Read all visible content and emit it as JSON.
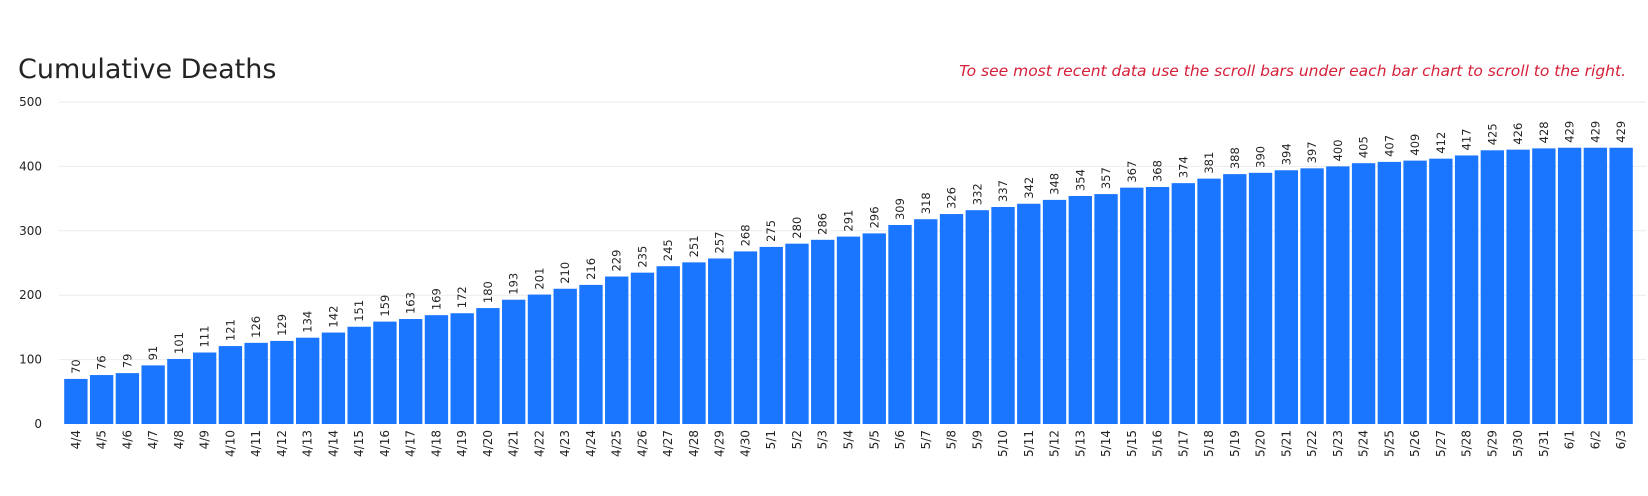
{
  "header": {
    "title": "Cumulative Deaths",
    "note": "To see most recent data use the scroll bars under each bar chart to scroll to the right."
  },
  "colors": {
    "bar": "#1a75ff",
    "grid": "#ebebeb",
    "text": "#252423",
    "note": "#d6203a"
  },
  "chart_data": {
    "type": "bar",
    "title": "Cumulative Deaths",
    "xlabel": "",
    "ylabel": "",
    "ylim": [
      0,
      500
    ],
    "yticks": [
      0,
      100,
      200,
      300,
      400,
      500
    ],
    "grid": true,
    "categories": [
      "4/4",
      "4/5",
      "4/6",
      "4/7",
      "4/8",
      "4/9",
      "4/10",
      "4/11",
      "4/12",
      "4/13",
      "4/14",
      "4/15",
      "4/16",
      "4/17",
      "4/18",
      "4/19",
      "4/20",
      "4/21",
      "4/22",
      "4/23",
      "4/24",
      "4/25",
      "4/26",
      "4/27",
      "4/28",
      "4/29",
      "4/30",
      "5/1",
      "5/2",
      "5/3",
      "5/4",
      "5/5",
      "5/6",
      "5/7",
      "5/8",
      "5/9",
      "5/10",
      "5/11",
      "5/12",
      "5/13",
      "5/14",
      "5/15",
      "5/16",
      "5/17",
      "5/18",
      "5/19",
      "5/20",
      "5/21",
      "5/22",
      "5/23",
      "5/24",
      "5/25",
      "5/26",
      "5/27",
      "5/28",
      "5/29",
      "5/30",
      "5/31",
      "6/1",
      "6/2",
      "6/3"
    ],
    "values": [
      70,
      76,
      79,
      91,
      101,
      111,
      121,
      126,
      129,
      134,
      142,
      151,
      159,
      163,
      169,
      172,
      180,
      193,
      201,
      210,
      216,
      229,
      235,
      245,
      251,
      257,
      268,
      275,
      280,
      286,
      291,
      296,
      309,
      318,
      326,
      332,
      337,
      342,
      348,
      354,
      357,
      367,
      368,
      374,
      381,
      388,
      390,
      394,
      397,
      400,
      405,
      407,
      409,
      412,
      417,
      425,
      426,
      428,
      429,
      429,
      429
    ]
  }
}
